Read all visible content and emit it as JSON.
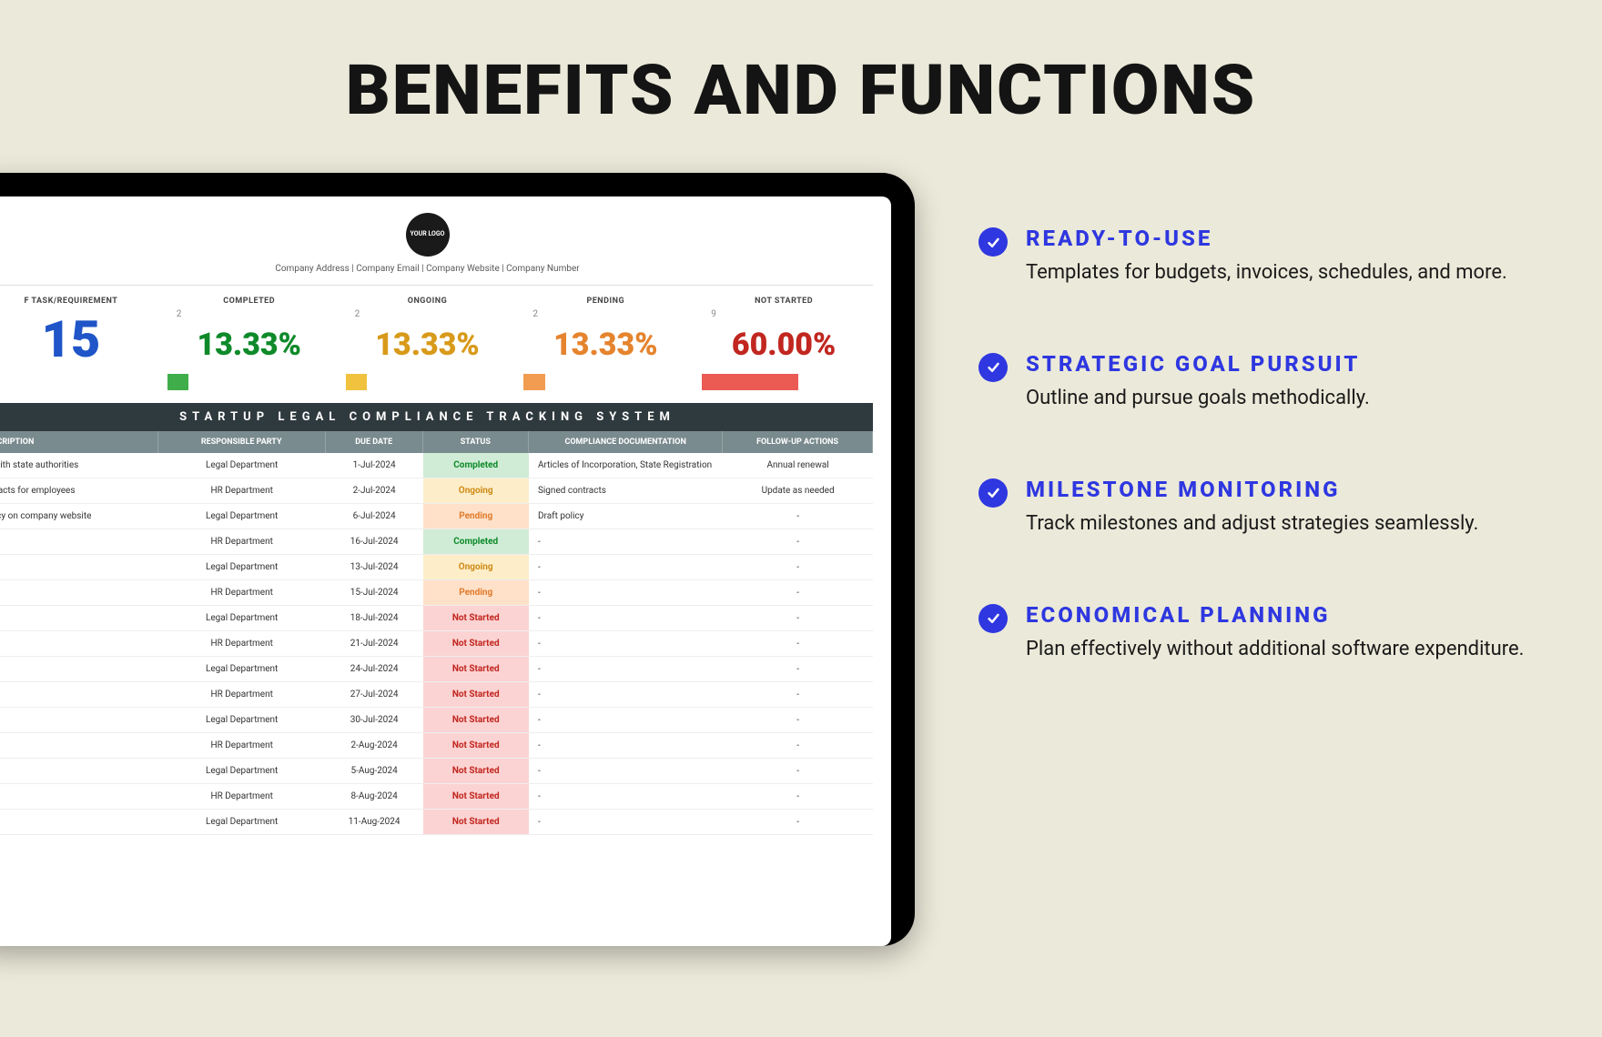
{
  "heading": "BENEFITS AND FUNCTIONS",
  "logo_text": "YOUR LOGO",
  "company_line": "Company Address   |   Company Email   |   Company Website   |   Company Number",
  "stats": {
    "total": {
      "label": "F TASK/REQUIREMENT",
      "value": "15",
      "color": "#1f55c8"
    },
    "completed": {
      "label": "COMPLETED",
      "count": "2",
      "pct": "13.33%",
      "color": "#0e8a2a",
      "bar_color": "#3fae4a",
      "bar_pct": 13.33
    },
    "ongoing": {
      "label": "ONGOING",
      "count": "2",
      "pct": "13.33%",
      "color": "#d89a1a",
      "bar_color": "#f0c23e",
      "bar_pct": 13.33
    },
    "pending": {
      "label": "PENDING",
      "count": "2",
      "pct": "13.33%",
      "color": "#e5842e",
      "bar_color": "#f29c52",
      "bar_pct": 13.33
    },
    "notstarted": {
      "label": "NOT STARTED",
      "count": "9",
      "pct": "60.00%",
      "color": "#c1261f",
      "bar_color": "#ec5a54",
      "bar_pct": 60.0
    }
  },
  "table_title": "STARTUP LEGAL COMPLIANCE TRACKING SYSTEM",
  "columns": {
    "desc": "DESCRIPTION",
    "party": "RESPONSIBLE PARTY",
    "due": "DUE DATE",
    "status": "STATUS",
    "doc": "COMPLIANCE DOCUMENTATION",
    "follow": "FOLLOW-UP ACTIONS"
  },
  "status_styles": {
    "Completed": {
      "bg": "#d0ecd6",
      "fg": "#0e8a2a"
    },
    "Ongoing": {
      "bg": "#fdeec9",
      "fg": "#cf8b16"
    },
    "Pending": {
      "bg": "#ffe1c9",
      "fg": "#e07a2b"
    },
    "Not Started": {
      "bg": "#fcd3d3",
      "fg": "#c1261f"
    }
  },
  "rows": [
    {
      "desc": "ny with state authorities",
      "party": "Legal Department",
      "due": "1-Jul-2024",
      "status": "Completed",
      "doc": "Articles of Incorporation, State Registration",
      "follow": "Annual renewal"
    },
    {
      "desc": "ontracts for employees",
      "party": "HR Department",
      "due": "2-Jul-2024",
      "status": "Ongoing",
      "doc": "Signed contracts",
      "follow": "Update as needed"
    },
    {
      "desc": "policy on company website",
      "party": "Legal Department",
      "due": "6-Jul-2024",
      "status": "Pending",
      "doc": "Draft policy",
      "follow": "-"
    },
    {
      "desc": "",
      "party": "HR Department",
      "due": "16-Jul-2024",
      "status": "Completed",
      "doc": "-",
      "follow": "-"
    },
    {
      "desc": "",
      "party": "Legal Department",
      "due": "13-Jul-2024",
      "status": "Ongoing",
      "doc": "-",
      "follow": "-"
    },
    {
      "desc": "",
      "party": "HR Department",
      "due": "15-Jul-2024",
      "status": "Pending",
      "doc": "-",
      "follow": "-"
    },
    {
      "desc": "",
      "party": "Legal Department",
      "due": "18-Jul-2024",
      "status": "Not Started",
      "doc": "-",
      "follow": "-"
    },
    {
      "desc": "",
      "party": "HR Department",
      "due": "21-Jul-2024",
      "status": "Not Started",
      "doc": "-",
      "follow": "-"
    },
    {
      "desc": "",
      "party": "Legal Department",
      "due": "24-Jul-2024",
      "status": "Not Started",
      "doc": "-",
      "follow": "-"
    },
    {
      "desc": "",
      "party": "HR Department",
      "due": "27-Jul-2024",
      "status": "Not Started",
      "doc": "-",
      "follow": "-"
    },
    {
      "desc": "",
      "party": "Legal Department",
      "due": "30-Jul-2024",
      "status": "Not Started",
      "doc": "-",
      "follow": "-"
    },
    {
      "desc": "",
      "party": "HR Department",
      "due": "2-Aug-2024",
      "status": "Not Started",
      "doc": "-",
      "follow": "-"
    },
    {
      "desc": "",
      "party": "Legal Department",
      "due": "5-Aug-2024",
      "status": "Not Started",
      "doc": "-",
      "follow": "-"
    },
    {
      "desc": "",
      "party": "HR Department",
      "due": "8-Aug-2024",
      "status": "Not Started",
      "doc": "-",
      "follow": "-"
    },
    {
      "desc": "",
      "party": "Legal Department",
      "due": "11-Aug-2024",
      "status": "Not Started",
      "doc": "-",
      "follow": "-"
    }
  ],
  "benefits": [
    {
      "title": "READY-TO-USE",
      "desc": "Templates for budgets, invoices, schedules, and more."
    },
    {
      "title": "STRATEGIC GOAL PURSUIT",
      "desc": "Outline and pursue goals methodically."
    },
    {
      "title": "MILESTONE MONITORING",
      "desc": "Track milestones and adjust strategies seamlessly."
    },
    {
      "title": "ECONOMICAL PLANNING",
      "desc": "Plan effectively without additional software expenditure."
    }
  ],
  "accent": "#2e37e0"
}
